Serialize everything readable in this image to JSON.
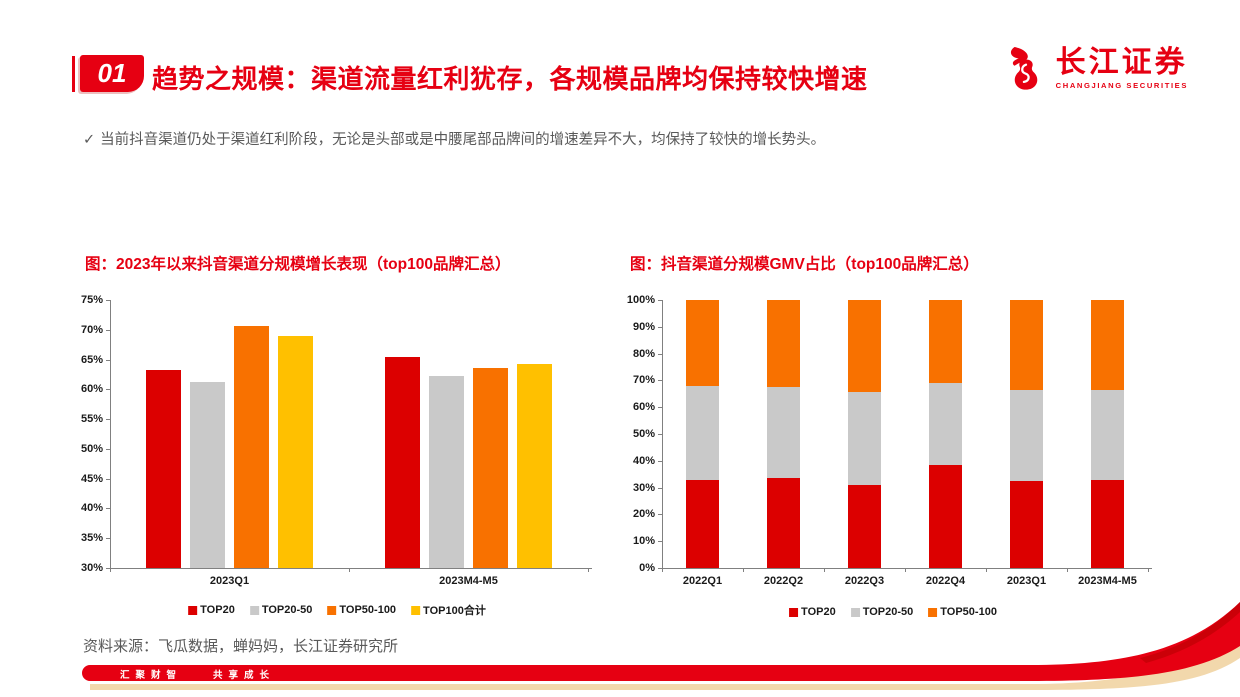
{
  "header": {
    "section_number": "01",
    "title": "趋势之规模：渠道流量红利犹存，各规模品牌均保持较快增速",
    "logo_cn": "长江证券",
    "logo_en": "CHANGJIANG SECURITIES"
  },
  "bullet": {
    "check": "✓",
    "text": "当前抖音渠道仍处于渠道红利阶段，无论是头部或是中腰尾部品牌间的增速差异不大，均保持了较快的增长势头。"
  },
  "chart_data": [
    {
      "type": "bar",
      "stacked": false,
      "title": "图：2023年以来抖音渠道分规模增长表现（top100品牌汇总）",
      "categories": [
        "2023Q1",
        "2023M4-M5"
      ],
      "series": [
        {
          "name": "TOP20",
          "color": "#dc0000",
          "values": [
            63.2,
            65.4
          ]
        },
        {
          "name": "TOP20-50",
          "color": "#c9c9c9",
          "values": [
            61.2,
            62.3
          ]
        },
        {
          "name": "TOP50-100",
          "color": "#f87100",
          "values": [
            70.7,
            63.5
          ]
        },
        {
          "name": "TOP100合计",
          "color": "#ffc000",
          "values": [
            68.9,
            64.3
          ]
        }
      ],
      "ylabel": "",
      "xlabel": "",
      "ylim": [
        30,
        75
      ],
      "ytick_step": 5,
      "ytick_suffix": "%",
      "grid": false,
      "legend_position": "bottom"
    },
    {
      "type": "bar",
      "stacked": true,
      "title": "图：抖音渠道分规模GMV占比（top100品牌汇总）",
      "categories": [
        "2022Q1",
        "2022Q2",
        "2022Q3",
        "2022Q4",
        "2023Q1",
        "2023M4-M5"
      ],
      "series": [
        {
          "name": "TOP20",
          "color": "#dc0000",
          "values": [
            33.0,
            33.5,
            31.0,
            38.5,
            32.5,
            33.0
          ]
        },
        {
          "name": "TOP20-50",
          "color": "#c9c9c9",
          "values": [
            35.0,
            34.0,
            34.5,
            30.5,
            34.0,
            33.5
          ]
        },
        {
          "name": "TOP50-100",
          "color": "#f87100",
          "values": [
            32.0,
            32.5,
            34.5,
            31.0,
            33.5,
            33.5
          ]
        }
      ],
      "ylabel": "",
      "xlabel": "",
      "ylim": [
        0,
        100
      ],
      "ytick_step": 10,
      "ytick_suffix": "%",
      "grid": false,
      "legend_position": "bottom"
    }
  ],
  "footer": {
    "source": "资料来源：飞瓜数据，蝉妈妈，长江证券研究所",
    "slogan": "汇聚财智　　共享成长"
  },
  "colors": {
    "brand_red": "#e60012",
    "bar_red": "#dc0000",
    "bar_gray": "#c9c9c9",
    "bar_orange": "#f87100",
    "bar_yellow": "#ffc000",
    "text_gray": "#595959",
    "ribbon_shadow": "#f2d8ac"
  }
}
